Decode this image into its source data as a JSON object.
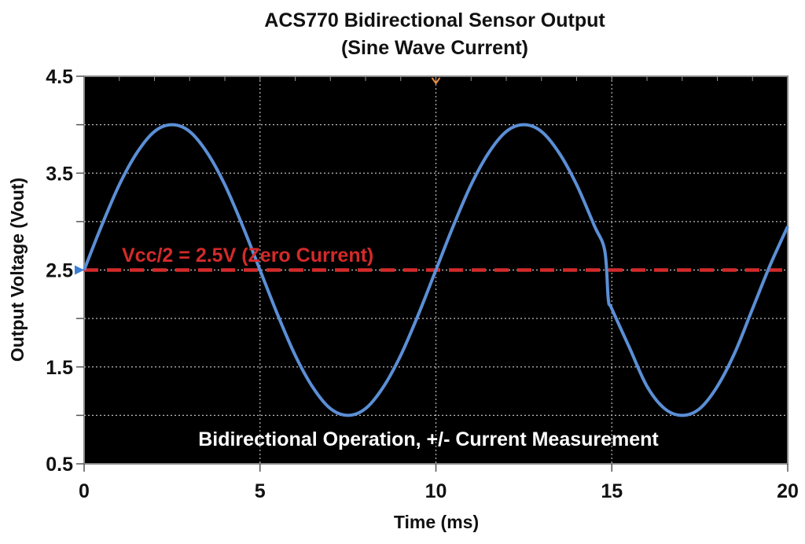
{
  "chart_data": {
    "type": "line",
    "title": "ACS770 Bidirectional Sensor Output",
    "subtitle": "(Sine Wave Current)",
    "xlabel": "Time (ms)",
    "ylabel": "Output Voltage (Vout)",
    "xlim": [
      0,
      20
    ],
    "ylim": [
      0.5,
      4.5
    ],
    "xticks": [
      0,
      5,
      10,
      15,
      20
    ],
    "yticks": [
      0.5,
      1.5,
      2.5,
      3.5,
      4.5
    ],
    "grid": true,
    "background": "#000000",
    "series": [
      {
        "color": "#5b8fd6",
        "x": [
          0,
          0.5,
          1,
          1.5,
          2,
          2.5,
          3,
          3.5,
          4,
          4.5,
          5,
          5.5,
          6,
          6.5,
          7,
          7.5,
          8,
          8.5,
          9,
          9.5,
          10,
          10.5,
          11,
          11.5,
          12,
          12.5,
          13,
          13.5,
          14,
          14.5,
          14.8,
          14.9,
          15,
          15.5,
          16,
          16.5,
          17,
          17.5,
          18,
          18.5,
          19,
          19.5,
          20
        ],
        "y": [
          2.5,
          2.96,
          3.38,
          3.71,
          3.93,
          4.0,
          3.93,
          3.71,
          3.38,
          2.96,
          2.5,
          2.04,
          1.62,
          1.29,
          1.07,
          1.0,
          1.07,
          1.29,
          1.62,
          2.04,
          2.5,
          2.96,
          3.38,
          3.71,
          3.93,
          4.0,
          3.93,
          3.71,
          3.38,
          2.96,
          2.7,
          2.2,
          2.1,
          1.7,
          1.3,
          1.07,
          1.0,
          1.07,
          1.3,
          1.65,
          2.1,
          2.55,
          2.95
        ]
      }
    ],
    "reference_line": {
      "y": 2.5,
      "color": "#d42a2a",
      "style": "dashed",
      "label": "Vcc/2 = 2.5V  (Zero Current)"
    },
    "annotation": "Bidirectional Operation, +/- Current Measurement",
    "trigger_marker_color": "#e8893a",
    "level_marker_color": "#3b7fd6"
  }
}
